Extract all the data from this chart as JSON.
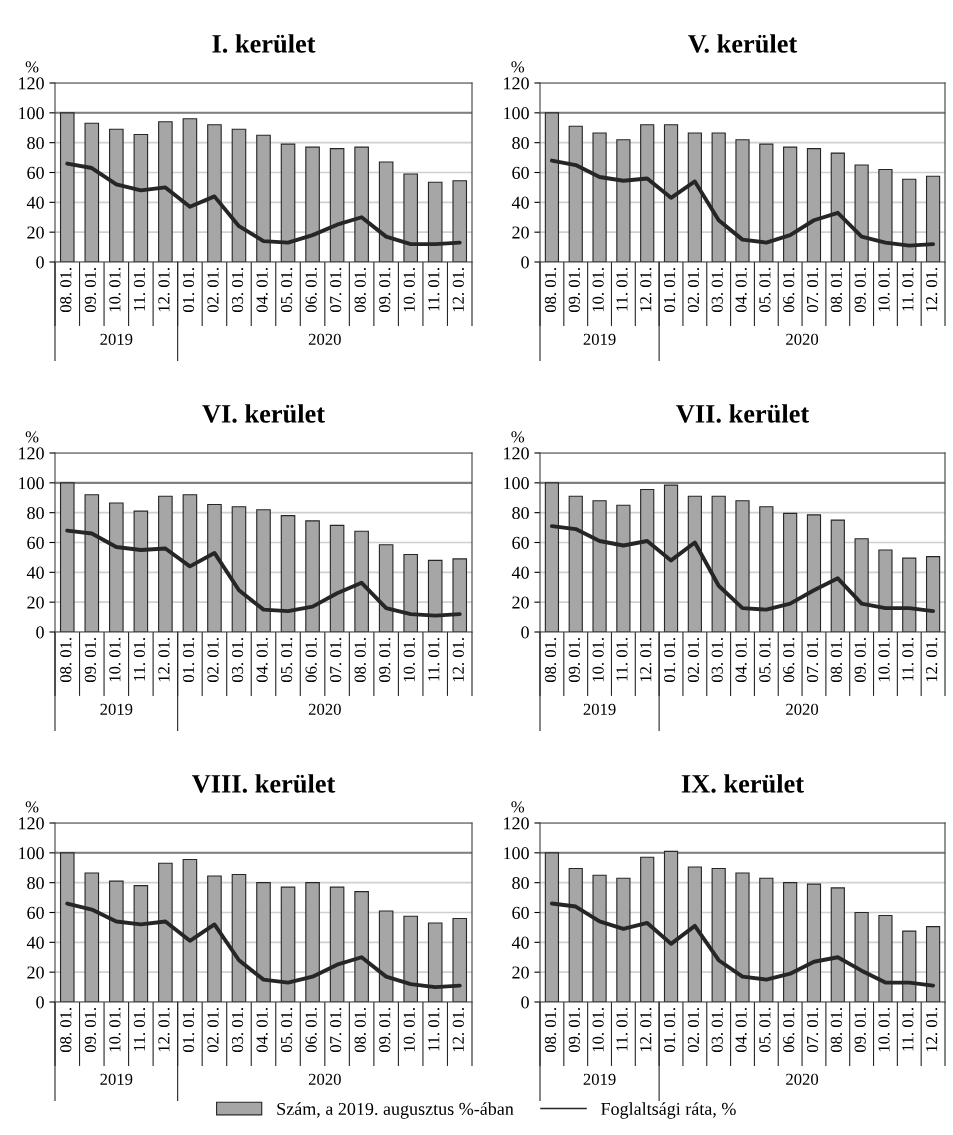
{
  "chart_data": [
    {
      "type": "bar",
      "title": "I. kerület",
      "ylabel": "%",
      "categories": [
        "08. 01.",
        "09. 01.",
        "10. 01.",
        "11. 01.",
        "12. 01.",
        "01. 01.",
        "02. 01.",
        "03. 01.",
        "04. 01.",
        "05. 01.",
        "06. 01.",
        "07. 01.",
        "08. 01.",
        "09. 01.",
        "10. 01.",
        "11. 01.",
        "12. 01."
      ],
      "ylim": [
        0,
        120
      ],
      "yticks": [
        0,
        20,
        40,
        60,
        80,
        100,
        120
      ],
      "grid": "y",
      "legend": false,
      "annotations": [
        "2019",
        "2020"
      ],
      "ref_lines": [
        {
          "axis": "y",
          "value": 100,
          "color": "#7f7f7f"
        }
      ],
      "series": [
        {
          "color": "#a6a6a6",
          "values": [
            100,
            93,
            89,
            85.5,
            94,
            96,
            92,
            89,
            85,
            79,
            77,
            76,
            77,
            67,
            59,
            53.5,
            54.5
          ]
        },
        {
          "type": "line",
          "color": "#262626",
          "values": [
            66,
            63,
            52,
            48,
            50,
            37,
            44,
            24,
            14,
            13,
            18,
            25,
            30,
            17,
            12,
            12,
            13
          ]
        }
      ]
    },
    {
      "type": "bar",
      "title": "V. kerület",
      "ylabel": "%",
      "categories": [
        "08. 01.",
        "09. 01.",
        "10. 01.",
        "11. 01.",
        "12. 01.",
        "01. 01.",
        "02. 01.",
        "03. 01.",
        "04. 01.",
        "05. 01.",
        "06. 01.",
        "07. 01.",
        "08. 01.",
        "09. 01.",
        "10. 01.",
        "11. 01.",
        "12. 01."
      ],
      "ylim": [
        0,
        120
      ],
      "yticks": [
        0,
        20,
        40,
        60,
        80,
        100,
        120
      ],
      "grid": "y",
      "legend": false,
      "annotations": [
        "2019",
        "2020"
      ],
      "ref_lines": [
        {
          "axis": "y",
          "value": 100,
          "color": "#7f7f7f"
        }
      ],
      "series": [
        {
          "color": "#a6a6a6",
          "values": [
            100,
            91,
            86.5,
            82,
            92,
            92,
            86.5,
            86.5,
            82,
            79,
            77,
            76,
            73,
            65,
            62,
            55.5,
            57.5
          ]
        },
        {
          "type": "line",
          "color": "#262626",
          "values": [
            68,
            65,
            57,
            54.5,
            56,
            43,
            54,
            28,
            15,
            13,
            18,
            28,
            33,
            17,
            13,
            11,
            12
          ]
        }
      ]
    },
    {
      "type": "bar",
      "title": "VI. kerület",
      "ylabel": "%",
      "categories": [
        "08. 01.",
        "09. 01.",
        "10. 01.",
        "11. 01.",
        "12. 01.",
        "01. 01.",
        "02. 01.",
        "03. 01.",
        "04. 01.",
        "05. 01.",
        "06. 01.",
        "07. 01.",
        "08. 01.",
        "09. 01.",
        "10. 01.",
        "11. 01.",
        "12. 01."
      ],
      "ylim": [
        0,
        120
      ],
      "yticks": [
        0,
        20,
        40,
        60,
        80,
        100,
        120
      ],
      "grid": "y",
      "legend": false,
      "annotations": [
        "2019",
        "2020"
      ],
      "ref_lines": [
        {
          "axis": "y",
          "value": 100,
          "color": "#7f7f7f"
        }
      ],
      "series": [
        {
          "color": "#a6a6a6",
          "values": [
            100,
            92,
            86.5,
            81,
            91,
            92,
            85.5,
            84,
            82,
            78,
            74.5,
            71.5,
            67.5,
            58.5,
            52,
            48,
            49
          ]
        },
        {
          "type": "line",
          "color": "#262626",
          "values": [
            68,
            66,
            57,
            55,
            56,
            44,
            53,
            28,
            15,
            14,
            17,
            26,
            33,
            16,
            12,
            11,
            12
          ]
        }
      ]
    },
    {
      "type": "bar",
      "title": "VII. kerület",
      "ylabel": "%",
      "categories": [
        "08. 01.",
        "09. 01.",
        "10. 01.",
        "11. 01.",
        "12. 01.",
        "01. 01.",
        "02. 01.",
        "03. 01.",
        "04. 01.",
        "05. 01.",
        "06. 01.",
        "07. 01.",
        "08. 01.",
        "09. 01.",
        "10. 01.",
        "11. 01.",
        "12. 01."
      ],
      "ylim": [
        0,
        120
      ],
      "yticks": [
        0,
        20,
        40,
        60,
        80,
        100,
        120
      ],
      "grid": "y",
      "legend": false,
      "annotations": [
        "2019",
        "2020"
      ],
      "ref_lines": [
        {
          "axis": "y",
          "value": 100,
          "color": "#7f7f7f"
        }
      ],
      "series": [
        {
          "color": "#a6a6a6",
          "values": [
            100,
            91,
            88,
            85,
            95.5,
            98.5,
            91,
            91,
            88,
            84,
            79.5,
            78.5,
            75,
            62.5,
            55,
            49.5,
            50.5
          ]
        },
        {
          "type": "line",
          "color": "#262626",
          "values": [
            71,
            69,
            61,
            58,
            61,
            48,
            60,
            31,
            16,
            15,
            19,
            28,
            36,
            19,
            16,
            16,
            14
          ]
        }
      ]
    },
    {
      "type": "bar",
      "title": "VIII. kerület",
      "ylabel": "%",
      "categories": [
        "08. 01.",
        "09. 01.",
        "10. 01.",
        "11. 01.",
        "12. 01.",
        "01. 01.",
        "02. 01.",
        "03. 01.",
        "04. 01.",
        "05. 01.",
        "06. 01.",
        "07. 01.",
        "08. 01.",
        "09. 01.",
        "10. 01.",
        "11. 01.",
        "12. 01."
      ],
      "ylim": [
        0,
        120
      ],
      "yticks": [
        0,
        20,
        40,
        60,
        80,
        100,
        120
      ],
      "grid": "y",
      "legend": false,
      "annotations": [
        "2019",
        "2020"
      ],
      "ref_lines": [
        {
          "axis": "y",
          "value": 100,
          "color": "#7f7f7f"
        }
      ],
      "series": [
        {
          "color": "#a6a6a6",
          "values": [
            100,
            86.5,
            81,
            78,
            93,
            95.5,
            84.5,
            85.5,
            80,
            77,
            80,
            77,
            74,
            61,
            57.5,
            53,
            56
          ]
        },
        {
          "type": "line",
          "color": "#262626",
          "values": [
            66,
            62,
            54,
            52,
            54,
            41,
            52,
            28,
            15,
            13,
            17,
            25,
            30,
            17,
            12,
            10,
            11
          ]
        }
      ]
    },
    {
      "type": "bar",
      "title": "IX. kerület",
      "ylabel": "%",
      "categories": [
        "08. 01.",
        "09. 01.",
        "10. 01.",
        "11. 01.",
        "12. 01.",
        "01. 01.",
        "02. 01.",
        "03. 01.",
        "04. 01.",
        "05. 01.",
        "06. 01.",
        "07. 01.",
        "08. 01.",
        "09. 01.",
        "10. 01.",
        "11. 01.",
        "12. 01."
      ],
      "ylim": [
        0,
        120
      ],
      "yticks": [
        0,
        20,
        40,
        60,
        80,
        100,
        120
      ],
      "grid": "y",
      "legend": "bottom",
      "annotations": [
        "2019",
        "2020"
      ],
      "ref_lines": [
        {
          "axis": "y",
          "value": 100,
          "color": "#7f7f7f"
        }
      ],
      "series": [
        {
          "name": "Szám, a 2019. augusztus %-ában",
          "color": "#a6a6a6",
          "values": [
            100,
            89.5,
            85,
            83,
            97,
            101,
            90.5,
            89.5,
            86.5,
            83,
            80,
            79,
            76.5,
            60,
            58,
            47.5,
            50.5
          ]
        },
        {
          "name": "Foglaltsági ráta, %",
          "type": "line",
          "color": "#262626",
          "values": [
            66,
            64,
            54,
            49,
            53,
            39,
            51,
            28,
            17,
            15,
            19,
            27,
            30,
            21,
            13,
            13,
            11
          ]
        }
      ]
    }
  ]
}
